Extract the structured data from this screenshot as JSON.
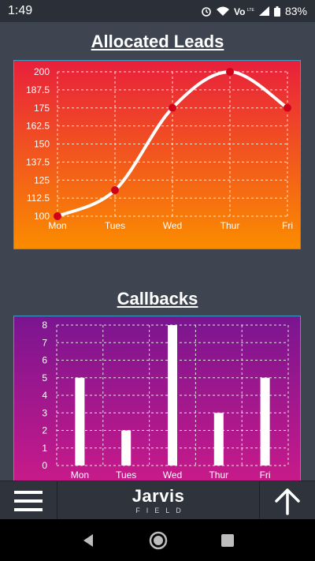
{
  "status_bar": {
    "time": "1:49",
    "battery": "83%"
  },
  "brand": {
    "name": "Jarvis",
    "sub": "FIELD"
  },
  "colors": {
    "background": "#3e4550",
    "line_gradient": [
      "#e8203c",
      "#fb8c00"
    ],
    "bar_gradient": [
      "#7a1590",
      "#c81a8a"
    ],
    "marker": "#d0021b"
  },
  "chart_data": [
    {
      "type": "line",
      "title": "Allocated Leads",
      "categories": [
        "Mon",
        "Tues",
        "Wed",
        "Thur",
        "Fri"
      ],
      "values": [
        100,
        118,
        175,
        200,
        175
      ],
      "ylim": [
        100,
        200
      ],
      "yticks": [
        "100",
        "112.5",
        "125",
        "137.5",
        "150",
        "162.5",
        "175",
        "187.5",
        "200"
      ],
      "grid": true
    },
    {
      "type": "bar",
      "title": "Callbacks",
      "categories": [
        "Mon",
        "Tues",
        "Wed",
        "Thur",
        "Fri"
      ],
      "values": [
        5,
        2,
        8,
        3,
        5
      ],
      "ylim": [
        0,
        8
      ],
      "yticks": [
        "0",
        "1",
        "2",
        "3",
        "4",
        "5",
        "6",
        "7",
        "8"
      ],
      "grid": true
    }
  ]
}
